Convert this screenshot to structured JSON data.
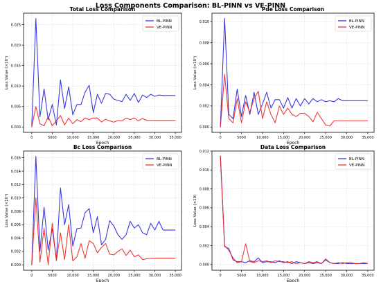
{
  "figure": {
    "title": "Loss Components Comparison: BL-PINN vs VE-PINN",
    "colors": {
      "BL-PINN": "#2222dd",
      "VE-PINN": "#ee2222",
      "grid": "#dcdcdc",
      "axis": "#000000"
    }
  },
  "chart_data": [
    {
      "type": "line",
      "title": "Total Loss Comparison",
      "xlabel": "Epoch",
      "ylabel": "Loss Value (×10¹)",
      "xlim": [
        -2000,
        36500
      ],
      "ylim": [
        -0.0013,
        0.0278
      ],
      "xticks": [
        0,
        5000,
        10000,
        15000,
        20000,
        25000,
        30000,
        35000
      ],
      "xtick_labels": [
        "0",
        "5000",
        "10,000",
        "15,000",
        "20,000",
        "25,000",
        "30,000",
        "35,000"
      ],
      "yticks": [
        0,
        0.005,
        0.01,
        0.015,
        0.02,
        0.025
      ],
      "ytick_labels": [
        "0.000",
        "0.005",
        "0.010",
        "0.015",
        "0.020",
        "0.025"
      ],
      "grid": true,
      "legend": "top-right",
      "x": [
        0,
        1000,
        2000,
        3000,
        4000,
        5000,
        6000,
        7000,
        8000,
        9000,
        10000,
        11000,
        12000,
        13000,
        14000,
        15000,
        16000,
        17000,
        18000,
        19000,
        20000,
        21000,
        22000,
        23000,
        24000,
        25000,
        26000,
        27000,
        28000,
        29000,
        30000,
        31000,
        32000,
        33000,
        34000,
        35000
      ],
      "series": [
        {
          "name": "BL-PINN",
          "values": [
            0.0,
            0.0265,
            0.0025,
            0.0093,
            0.0018,
            0.0055,
            0.0005,
            0.0115,
            0.0045,
            0.0098,
            0.003,
            0.0055,
            0.0055,
            0.0085,
            0.0102,
            0.0035,
            0.008,
            0.0058,
            0.0082,
            0.008,
            0.0068,
            0.0065,
            0.0062,
            0.008,
            0.0065,
            0.0082,
            0.006,
            0.0078,
            0.0072,
            0.008,
            0.0075,
            0.0078,
            0.0077,
            0.0077,
            0.0077,
            0.0077
          ]
        },
        {
          "name": "VE-PINN",
          "values": [
            0.0,
            0.005,
            0.0008,
            0.0003,
            0.0025,
            0.0003,
            0.0015,
            0.0028,
            0.0005,
            0.0022,
            0.0008,
            0.0018,
            0.0013,
            0.0022,
            0.0018,
            0.0022,
            0.0022,
            0.0012,
            0.0019,
            0.0015,
            0.0012,
            0.0016,
            0.0015,
            0.0022,
            0.0018,
            0.0022,
            0.0015,
            0.0021,
            0.0016,
            0.0016,
            0.0016,
            0.0016,
            0.0016,
            0.0016,
            0.0016,
            0.0016
          ]
        }
      ]
    },
    {
      "type": "line",
      "title": "Pde Loss Comparison",
      "xlabel": "Epoch",
      "ylabel": "Loss Value (×10¹)",
      "xlim": [
        -2000,
        36500
      ],
      "ylim": [
        -0.0005,
        0.0108
      ],
      "xticks": [
        0,
        5000,
        10000,
        15000,
        20000,
        25000,
        30000,
        35000
      ],
      "xtick_labels": [
        "0",
        "5000",
        "10,000",
        "15,000",
        "20,000",
        "25,000",
        "30,000",
        "35,000"
      ],
      "yticks": [
        0,
        0.002,
        0.004,
        0.006,
        0.008,
        0.01
      ],
      "ytick_labels": [
        "0.000",
        "0.002",
        "0.004",
        "0.006",
        "0.008",
        "0.010"
      ],
      "grid": true,
      "legend": "top-right",
      "x": [
        0,
        1000,
        2000,
        3000,
        4000,
        5000,
        6000,
        7000,
        8000,
        9000,
        10000,
        11000,
        12000,
        13000,
        14000,
        15000,
        16000,
        17000,
        18000,
        19000,
        20000,
        21000,
        22000,
        23000,
        24000,
        25000,
        26000,
        27000,
        28000,
        29000,
        30000,
        31000,
        32000,
        33000,
        34000,
        35000
      ],
      "series": [
        {
          "name": "BL-PINN",
          "values": [
            0.0,
            0.0103,
            0.0012,
            0.0008,
            0.0036,
            0.001,
            0.003,
            0.0012,
            0.0033,
            0.0012,
            0.0022,
            0.0033,
            0.0018,
            0.0026,
            0.0026,
            0.0018,
            0.0028,
            0.0018,
            0.0027,
            0.002,
            0.0027,
            0.0022,
            0.0027,
            0.0024,
            0.0026,
            0.0024,
            0.0025,
            0.0024,
            0.0027,
            0.0025,
            0.0025,
            0.0025,
            0.0025,
            0.0025,
            0.0025,
            0.0025
          ]
        },
        {
          "name": "VE-PINN",
          "values": [
            0.0,
            0.005,
            0.0008,
            0.0004,
            0.0027,
            0.0004,
            0.0024,
            0.0014,
            0.0027,
            0.0034,
            0.0008,
            0.0024,
            0.0012,
            0.0004,
            0.002,
            0.0012,
            0.0018,
            0.0012,
            0.001,
            0.0013,
            0.0013,
            0.001,
            0.0005,
            0.0014,
            0.0008,
            0.0002,
            0.0001,
            0.0006,
            0.0006,
            0.0006,
            0.0006,
            0.0006,
            0.0006,
            0.0006,
            0.0006,
            0.0006
          ]
        }
      ]
    },
    {
      "type": "line",
      "title": "Bc Loss Comparison",
      "xlabel": "Epoch",
      "ylabel": "Loss Value (×10¹)",
      "xlim": [
        -2000,
        36500
      ],
      "ylim": [
        -0.0008,
        0.017
      ],
      "xticks": [
        0,
        5000,
        10000,
        15000,
        20000,
        25000,
        30000,
        35000
      ],
      "xtick_labels": [
        "0",
        "5000",
        "10,000",
        "15,000",
        "20,000",
        "25,000",
        "30,000",
        "35,000"
      ],
      "yticks": [
        0,
        0.002,
        0.004,
        0.006,
        0.008,
        0.01,
        0.012,
        0.014,
        0.016
      ],
      "ytick_labels": [
        "0.000",
        "0.002",
        "0.004",
        "0.006",
        "0.008",
        "0.010",
        "0.012",
        "0.014",
        "0.016"
      ],
      "grid": true,
      "legend": "top-right",
      "x": [
        0,
        1000,
        2000,
        3000,
        4000,
        5000,
        6000,
        7000,
        8000,
        9000,
        10000,
        11000,
        12000,
        13000,
        14000,
        15000,
        16000,
        17000,
        18000,
        19000,
        20000,
        21000,
        22000,
        23000,
        24000,
        25000,
        26000,
        27000,
        28000,
        29000,
        30000,
        31000,
        32000,
        33000,
        34000,
        35000
      ],
      "series": [
        {
          "name": "BL-PINN",
          "values": [
            0.0,
            0.0162,
            0.002,
            0.0086,
            0.0022,
            0.0054,
            0.0008,
            0.0115,
            0.006,
            0.009,
            0.0028,
            0.0054,
            0.0055,
            0.0078,
            0.0084,
            0.0048,
            0.0072,
            0.003,
            0.0038,
            0.0066,
            0.0058,
            0.0045,
            0.0038,
            0.0045,
            0.0065,
            0.0055,
            0.006,
            0.0048,
            0.0045,
            0.0062,
            0.0052,
            0.0065,
            0.0052,
            0.0052,
            0.0052,
            0.0052
          ]
        },
        {
          "name": "VE-PINN",
          "values": [
            0.0,
            0.01,
            0.0004,
            0.0055,
            0.0,
            0.0062,
            0.0006,
            0.0048,
            0.0008,
            0.006,
            0.0006,
            0.0012,
            0.0032,
            0.001,
            0.0036,
            0.0032,
            0.0018,
            0.0026,
            0.0032,
            0.0016,
            0.0015,
            0.002,
            0.0024,
            0.0014,
            0.0022,
            0.0012,
            0.0015,
            0.0008,
            0.0009,
            0.001,
            0.001,
            0.001,
            0.001,
            0.001,
            0.001,
            0.001
          ]
        }
      ]
    },
    {
      "type": "line",
      "title": "Data Loss Comparison",
      "xlabel": "Epoch",
      "ylabel": "Loss Value (×10)",
      "xlim": [
        -2000,
        36500
      ],
      "ylim": [
        -0.0006,
        0.012
      ],
      "xticks": [
        0,
        5000,
        10000,
        15000,
        20000,
        25000,
        30000,
        35000
      ],
      "xtick_labels": [
        "0",
        "5000",
        "10,000",
        "15,000",
        "20,000",
        "25,000",
        "30,000",
        "35,000"
      ],
      "yticks": [
        0,
        0.002,
        0.004,
        0.006,
        0.008,
        0.01,
        0.012
      ],
      "ytick_labels": [
        "0.000",
        "0.002",
        "0.004",
        "0.006",
        "0.008",
        "0.010",
        "0.012"
      ],
      "grid": true,
      "legend": "top-right",
      "x": [
        0,
        1000,
        2000,
        3000,
        4000,
        5000,
        6000,
        7000,
        8000,
        9000,
        10000,
        11000,
        12000,
        13000,
        14000,
        15000,
        16000,
        17000,
        18000,
        19000,
        20000,
        21000,
        22000,
        23000,
        24000,
        25000,
        26000,
        27000,
        28000,
        29000,
        30000,
        31000,
        32000,
        33000,
        34000,
        35000
      ],
      "series": [
        {
          "name": "BL-PINN",
          "values": [
            0.0115,
            0.0019,
            0.0017,
            0.0005,
            0.0003,
            0.0003,
            0.0002,
            0.0004,
            0.0003,
            0.0007,
            0.0002,
            0.0003,
            0.0003,
            0.0002,
            0.0004,
            0.0002,
            0.0003,
            0.0001,
            0.0003,
            0.0002,
            0.0001,
            0.0002,
            0.0001,
            0.0002,
            0.0001,
            0.0005,
            0.0002,
            0.0001,
            0.0001,
            0.0002,
            0.0001,
            0.0001,
            0.0001,
            0.0001,
            0.0001,
            0.0001
          ]
        },
        {
          "name": "VE-PINN",
          "values": [
            0.0115,
            0.002,
            0.0015,
            0.0007,
            0.0002,
            0.0003,
            0.0022,
            0.0003,
            0.0002,
            0.0004,
            0.0003,
            0.0004,
            0.0002,
            0.0004,
            0.0003,
            0.0003,
            0.0002,
            0.0003,
            0.0001,
            0.0002,
            0.0001,
            0.0003,
            0.0002,
            0.0003,
            0.0001,
            0.0006,
            0.0002,
            0.0001,
            0.0002,
            0.0001,
            0.0002,
            0.0002,
            0.0001,
            0.0001,
            0.0002,
            0.0001
          ]
        }
      ]
    }
  ]
}
